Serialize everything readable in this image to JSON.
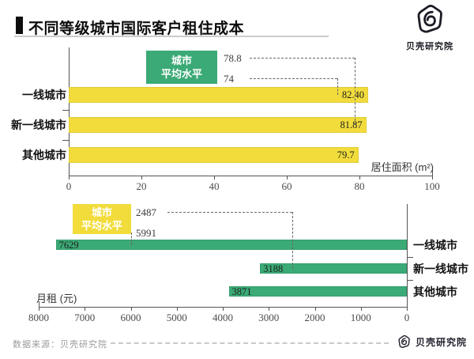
{
  "header": {
    "title": "不同等级城市国际客户租住成本",
    "logo_text": "贝壳研究院"
  },
  "footer": {
    "source": "数据来源：贝壳研究院",
    "logo_text": "贝壳研究院"
  },
  "colors": {
    "yellow": "#F2DC3C",
    "green": "#3BAA76"
  },
  "chart_data": [
    {
      "type": "bar",
      "orientation": "horizontal",
      "categories": [
        "一线城市",
        "新一线城市",
        "其他城市"
      ],
      "values": [
        82.4,
        81.87,
        79.7
      ],
      "value_labels": [
        "82.40",
        "81.87",
        "79.7"
      ],
      "bar_color": "#F2DC3C",
      "xlabel": "居住面积 (m²)",
      "xlim": [
        0,
        100
      ],
      "tick_labels": [
        "0",
        "20",
        "40",
        "60",
        "80",
        "100"
      ],
      "grid": false,
      "legend": null,
      "reference": {
        "label_lines": [
          "城市",
          "平均水平"
        ],
        "box_color": "#3BAA76",
        "items": [
          {
            "label": "78.8",
            "value": 78.8,
            "target_bar": 1
          },
          {
            "label": "74",
            "value": 74,
            "target_bar": 0
          }
        ]
      }
    },
    {
      "type": "bar",
      "orientation": "horizontal",
      "categories": [
        "一线城市",
        "新一线城市",
        "其他城市"
      ],
      "values": [
        7629,
        3188,
        3871
      ],
      "value_labels": [
        "7629",
        "3188",
        "3871"
      ],
      "bar_color": "#3BAA76",
      "xlabel": "月租 (元)",
      "xlim": [
        8000,
        0
      ],
      "tick_labels": [
        "8000",
        "7000",
        "6000",
        "5000",
        "4000",
        "3000",
        "2000",
        "1000",
        "0"
      ],
      "grid": false,
      "legend": null,
      "reference": {
        "label_lines": [
          "城市",
          "平均水平"
        ],
        "box_color": "#F2DC3C",
        "items": [
          {
            "label": "2487",
            "value": 2487,
            "target_bar": 1
          },
          {
            "label": "5991",
            "value": 5991,
            "target_bar": 0
          }
        ]
      }
    }
  ]
}
